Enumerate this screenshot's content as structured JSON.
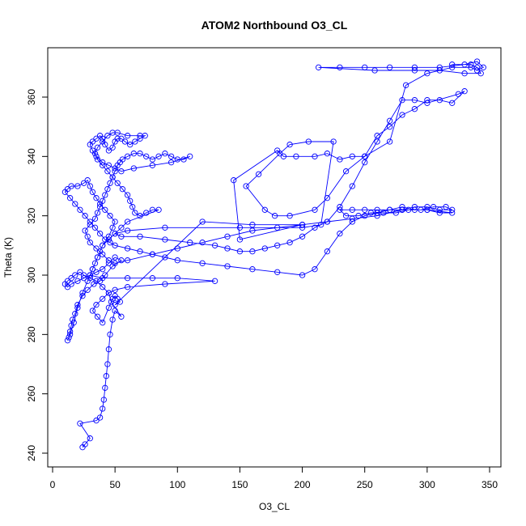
{
  "chart_data": {
    "type": "scatter",
    "title": "ATOM2 Northbound O3_CL",
    "xlabel": "O3_CL",
    "ylabel": "Theta (K)",
    "xlim": [
      0,
      350
    ],
    "ylim": [
      240,
      375
    ],
    "x_ticks": [
      0,
      50,
      100,
      150,
      200,
      250,
      300,
      350
    ],
    "y_ticks": [
      240,
      260,
      280,
      300,
      320,
      340,
      360
    ],
    "grid": false,
    "legend": "none",
    "markers": "open-circle",
    "connected": true,
    "color": "#0000ff",
    "series": [
      {
        "points": [
          [
            24,
            242
          ],
          [
            26,
            243
          ],
          [
            30,
            245
          ],
          [
            22,
            250
          ],
          [
            35,
            251
          ],
          [
            38,
            252
          ],
          [
            40,
            255
          ],
          [
            41,
            258
          ],
          [
            42,
            262
          ],
          [
            43,
            266
          ],
          [
            44,
            270
          ],
          [
            45,
            275
          ],
          [
            46,
            280
          ],
          [
            48,
            285
          ],
          [
            50,
            288
          ],
          [
            55,
            286
          ],
          [
            47,
            291
          ],
          [
            45,
            294
          ],
          [
            40,
            296
          ],
          [
            35,
            298
          ],
          [
            30,
            299
          ],
          [
            25,
            300
          ],
          [
            22,
            301
          ],
          [
            18,
            300
          ],
          [
            15,
            299
          ],
          [
            12,
            298
          ],
          [
            10,
            297
          ],
          [
            12,
            296
          ],
          [
            15,
            297
          ],
          [
            20,
            298
          ],
          [
            25,
            299
          ],
          [
            30,
            300
          ],
          [
            35,
            301
          ],
          [
            40,
            302
          ],
          [
            45,
            304
          ],
          [
            50,
            306
          ],
          [
            55,
            305
          ],
          [
            48,
            303
          ],
          [
            42,
            300
          ],
          [
            38,
            298
          ],
          [
            33,
            297
          ],
          [
            28,
            295
          ],
          [
            24,
            293
          ],
          [
            20,
            290
          ],
          [
            18,
            287
          ],
          [
            16,
            285
          ],
          [
            15,
            283
          ],
          [
            14,
            281
          ],
          [
            13,
            279
          ],
          [
            12,
            278
          ],
          [
            14,
            280
          ],
          [
            17,
            284
          ],
          [
            20,
            289
          ],
          [
            24,
            294
          ],
          [
            28,
            298
          ],
          [
            32,
            302
          ],
          [
            36,
            306
          ],
          [
            40,
            310
          ],
          [
            45,
            313
          ],
          [
            48,
            316
          ],
          [
            50,
            318
          ],
          [
            46,
            320
          ],
          [
            42,
            322
          ],
          [
            38,
            324
          ],
          [
            35,
            326
          ],
          [
            32,
            328
          ],
          [
            30,
            330
          ],
          [
            28,
            332
          ],
          [
            25,
            331
          ],
          [
            20,
            330
          ],
          [
            15,
            330
          ],
          [
            12,
            329
          ],
          [
            10,
            328
          ],
          [
            14,
            326
          ],
          [
            18,
            324
          ],
          [
            22,
            322
          ],
          [
            26,
            320
          ],
          [
            30,
            318
          ],
          [
            34,
            316
          ],
          [
            38,
            314
          ],
          [
            42,
            312
          ],
          [
            46,
            311
          ],
          [
            50,
            310
          ],
          [
            60,
            309
          ],
          [
            70,
            308
          ],
          [
            80,
            307
          ],
          [
            90,
            306
          ],
          [
            100,
            305
          ],
          [
            120,
            304
          ],
          [
            140,
            303
          ],
          [
            160,
            302
          ],
          [
            180,
            301
          ],
          [
            200,
            300
          ],
          [
            210,
            302
          ],
          [
            220,
            308
          ],
          [
            230,
            314
          ],
          [
            240,
            318
          ],
          [
            250,
            320
          ],
          [
            260,
            321
          ],
          [
            270,
            322
          ],
          [
            280,
            322
          ],
          [
            290,
            323
          ],
          [
            300,
            323
          ],
          [
            310,
            322
          ],
          [
            320,
            322
          ],
          [
            315,
            323
          ],
          [
            305,
            323
          ],
          [
            295,
            322
          ],
          [
            285,
            322
          ],
          [
            275,
            321
          ],
          [
            265,
            321
          ],
          [
            255,
            321
          ],
          [
            245,
            320
          ],
          [
            235,
            320
          ],
          [
            230,
            322
          ],
          [
            240,
            322
          ],
          [
            250,
            322
          ],
          [
            260,
            322
          ],
          [
            270,
            322
          ],
          [
            280,
            323
          ],
          [
            290,
            322
          ],
          [
            300,
            322
          ],
          [
            310,
            321
          ],
          [
            320,
            321
          ],
          [
            300,
            322
          ],
          [
            280,
            322
          ],
          [
            260,
            320
          ],
          [
            240,
            319
          ],
          [
            220,
            318
          ],
          [
            200,
            317
          ],
          [
            180,
            316
          ],
          [
            160,
            315
          ],
          [
            140,
            313
          ],
          [
            120,
            311
          ],
          [
            100,
            309
          ],
          [
            80,
            307
          ],
          [
            60,
            305
          ],
          [
            50,
            304
          ],
          [
            45,
            305
          ],
          [
            40,
            307
          ],
          [
            35,
            309
          ],
          [
            30,
            311
          ],
          [
            28,
            313
          ],
          [
            26,
            315
          ],
          [
            30,
            317
          ],
          [
            34,
            319
          ],
          [
            36,
            321
          ],
          [
            38,
            323
          ],
          [
            40,
            325
          ],
          [
            42,
            327
          ],
          [
            44,
            329
          ],
          [
            46,
            331
          ],
          [
            48,
            333
          ],
          [
            50,
            335
          ],
          [
            52,
            337
          ],
          [
            54,
            338
          ],
          [
            56,
            339
          ],
          [
            60,
            340
          ],
          [
            65,
            341
          ],
          [
            70,
            341
          ],
          [
            75,
            340
          ],
          [
            80,
            339
          ],
          [
            85,
            340
          ],
          [
            90,
            341
          ],
          [
            95,
            340
          ],
          [
            100,
            339
          ],
          [
            105,
            339
          ],
          [
            110,
            340
          ],
          [
            95,
            338
          ],
          [
            80,
            337
          ],
          [
            65,
            336
          ],
          [
            55,
            335
          ],
          [
            50,
            336
          ],
          [
            45,
            337
          ],
          [
            40,
            338
          ],
          [
            35,
            340
          ],
          [
            32,
            342
          ],
          [
            30,
            344
          ],
          [
            32,
            345
          ],
          [
            35,
            346
          ],
          [
            38,
            347
          ],
          [
            40,
            346
          ],
          [
            42,
            344
          ],
          [
            45,
            342
          ],
          [
            48,
            343
          ],
          [
            50,
            345
          ],
          [
            52,
            346
          ],
          [
            55,
            346
          ],
          [
            58,
            345
          ],
          [
            62,
            344
          ],
          [
            66,
            345
          ],
          [
            70,
            346
          ],
          [
            74,
            347
          ],
          [
            70,
            347
          ],
          [
            60,
            347
          ],
          [
            52,
            348
          ],
          [
            48,
            348
          ],
          [
            44,
            347
          ],
          [
            40,
            345
          ],
          [
            36,
            343
          ],
          [
            34,
            341
          ],
          [
            36,
            339
          ],
          [
            40,
            337
          ],
          [
            44,
            335
          ],
          [
            48,
            333
          ],
          [
            52,
            331
          ],
          [
            56,
            329
          ],
          [
            60,
            327
          ],
          [
            62,
            325
          ],
          [
            64,
            323
          ],
          [
            66,
            321
          ],
          [
            70,
            320
          ],
          [
            75,
            321
          ],
          [
            80,
            322
          ],
          [
            85,
            322
          ],
          [
            60,
            318
          ],
          [
            55,
            316
          ],
          [
            50,
            314
          ],
          [
            45,
            312
          ],
          [
            40,
            310
          ],
          [
            38,
            308
          ],
          [
            36,
            306
          ],
          [
            34,
            304
          ],
          [
            32,
            302
          ],
          [
            30,
            300
          ],
          [
            40,
            299
          ],
          [
            60,
            299
          ],
          [
            80,
            299
          ],
          [
            100,
            299
          ],
          [
            130,
            298
          ],
          [
            90,
            297
          ],
          [
            60,
            296
          ],
          [
            50,
            295
          ],
          [
            45,
            294
          ],
          [
            40,
            292
          ],
          [
            35,
            290
          ],
          [
            32,
            288
          ],
          [
            36,
            286
          ],
          [
            40,
            284
          ],
          [
            45,
            289
          ],
          [
            48,
            292
          ],
          [
            50,
            293
          ],
          [
            52,
            292
          ],
          [
            54,
            291
          ],
          [
            50,
            290
          ],
          [
            120,
            318
          ],
          [
            160,
            317
          ],
          [
            200,
            317
          ],
          [
            150,
            312
          ],
          [
            145,
            332
          ],
          [
            180,
            342
          ],
          [
            185,
            340
          ],
          [
            195,
            340
          ],
          [
            210,
            340
          ],
          [
            220,
            341
          ],
          [
            230,
            339
          ],
          [
            240,
            340
          ],
          [
            250,
            340
          ],
          [
            260,
            347
          ],
          [
            270,
            350
          ],
          [
            280,
            354
          ],
          [
            290,
            356
          ],
          [
            300,
            359
          ],
          [
            310,
            359
          ],
          [
            320,
            358
          ],
          [
            330,
            362
          ],
          [
            325,
            361
          ],
          [
            300,
            358
          ],
          [
            290,
            359
          ],
          [
            280,
            359
          ],
          [
            270,
            352
          ],
          [
            260,
            345
          ],
          [
            250,
            338
          ],
          [
            240,
            330
          ],
          [
            230,
            323
          ],
          [
            220,
            318
          ],
          [
            210,
            316
          ],
          [
            200,
            313
          ],
          [
            190,
            311
          ],
          [
            180,
            310
          ],
          [
            170,
            309
          ],
          [
            160,
            308
          ],
          [
            150,
            308
          ],
          [
            140,
            309
          ],
          [
            130,
            310
          ],
          [
            110,
            311
          ],
          [
            90,
            312
          ],
          [
            70,
            313
          ],
          [
            55,
            313
          ],
          [
            50,
            314
          ],
          [
            60,
            315
          ],
          [
            90,
            316
          ],
          [
            150,
            316
          ],
          [
            200,
            316
          ],
          [
            215,
            317
          ],
          [
            225,
            345
          ],
          [
            205,
            345
          ],
          [
            190,
            344
          ],
          [
            182,
            341
          ],
          [
            165,
            334
          ],
          [
            155,
            330
          ],
          [
            170,
            322
          ],
          [
            178,
            320
          ],
          [
            190,
            320
          ],
          [
            210,
            322
          ],
          [
            220,
            326
          ],
          [
            235,
            335
          ],
          [
            250,
            340
          ],
          [
            270,
            345
          ],
          [
            283,
            364
          ],
          [
            300,
            368
          ],
          [
            320,
            370
          ],
          [
            335,
            370
          ],
          [
            340,
            369
          ],
          [
            345,
            370
          ],
          [
            340,
            372
          ],
          [
            330,
            371
          ],
          [
            310,
            370
          ],
          [
            290,
            370
          ],
          [
            270,
            370
          ],
          [
            250,
            370
          ],
          [
            230,
            370
          ],
          [
            213,
            370
          ],
          [
            258,
            369
          ],
          [
            290,
            369
          ],
          [
            310,
            369
          ],
          [
            330,
            368
          ],
          [
            343,
            368
          ],
          [
            340,
            370
          ],
          [
            335,
            371
          ],
          [
            320,
            371
          ]
        ]
      }
    ]
  }
}
